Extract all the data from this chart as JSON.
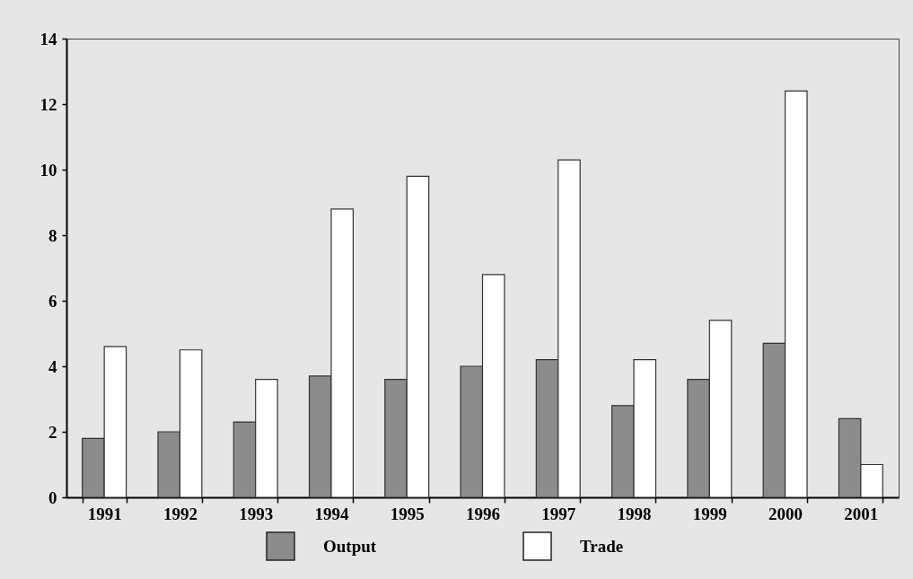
{
  "chart_data": {
    "type": "bar",
    "categories": [
      "1991",
      "1992",
      "1993",
      "1994",
      "1995",
      "1996",
      "1997",
      "1998",
      "1999",
      "2000",
      "2001"
    ],
    "series": [
      {
        "name": "Output",
        "color": "#8c8c8c",
        "values": [
          1.8,
          2.0,
          2.3,
          3.7,
          3.6,
          4.0,
          4.2,
          2.8,
          3.6,
          4.7,
          2.4
        ]
      },
      {
        "name": "Trade",
        "color": "#ffffff",
        "values": [
          4.6,
          4.5,
          3.6,
          8.8,
          9.8,
          6.8,
          10.3,
          4.2,
          5.4,
          12.4,
          1.0
        ]
      }
    ],
    "ylim": [
      0,
      14
    ],
    "yticks": [
      0,
      2,
      4,
      6,
      8,
      10,
      12,
      14
    ],
    "legend": "bottom"
  }
}
